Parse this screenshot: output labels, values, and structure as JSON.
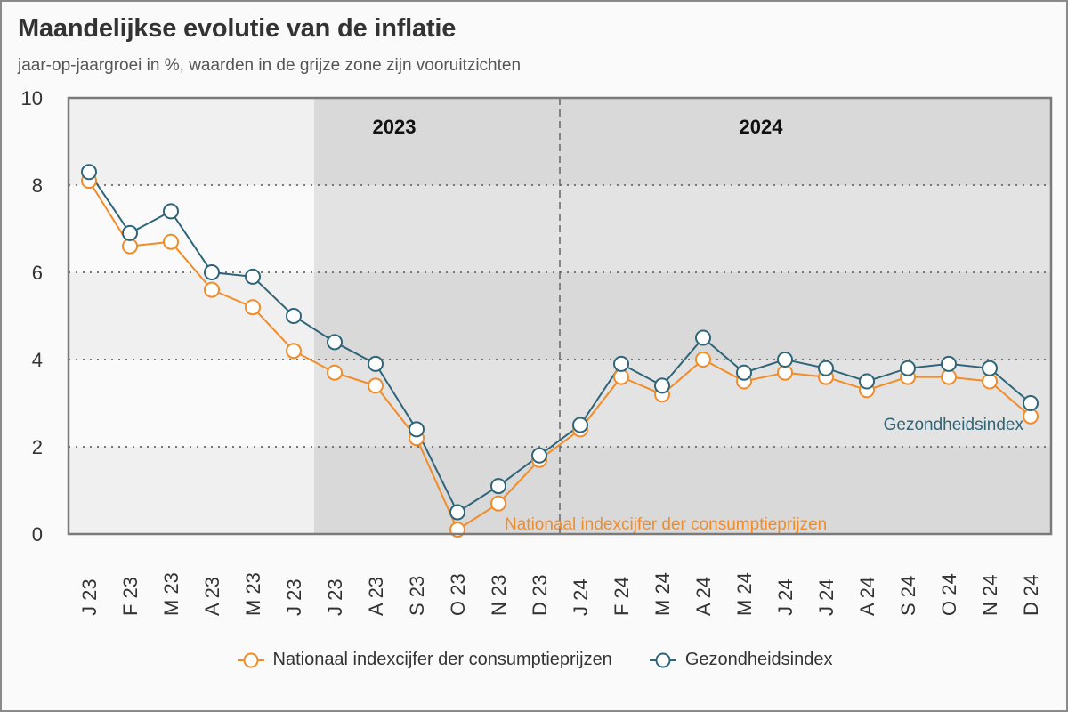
{
  "header": {
    "title": "Maandelijkse evolutie van de inflatie",
    "subtitle": "jaar-op-jaargroei in %, waarden in de grijze zone zijn vooruitzichten"
  },
  "chart_data": {
    "type": "line",
    "title": "Maandelijkse evolutie van de inflatie",
    "subtitle": "jaar-op-jaargroei in %, waarden in de grijze zone zijn vooruitzichten",
    "xlabel": "",
    "ylabel": "",
    "ylim": [
      0,
      10
    ],
    "yticks": [
      0,
      2,
      4,
      6,
      8,
      10
    ],
    "grid": "horizontal dotted",
    "categories": [
      "J 23",
      "F 23",
      "M 23",
      "A 23",
      "M 23",
      "J 23",
      "J 23",
      "A 23",
      "S 23",
      "O 23",
      "N 23",
      "D 23",
      "J 24",
      "F 24",
      "M 24",
      "A 24",
      "M 24",
      "J 24",
      "J 24",
      "A 24",
      "S 24",
      "O 24",
      "N 24",
      "D 24"
    ],
    "forecast_start_index": 6,
    "year_divider_index": 12,
    "year_labels": [
      {
        "label": "2023",
        "position": "centered-over-2023"
      },
      {
        "label": "2024",
        "position": "centered-over-2024"
      }
    ],
    "series": [
      {
        "name": "Nationaal indexcijfer der consumptieprijzen",
        "color": "#f28c28",
        "inline_label": "Nationaal indexcijfer der consumptieprijzen",
        "values": [
          8.1,
          6.6,
          6.7,
          5.6,
          5.2,
          4.2,
          3.7,
          3.4,
          2.2,
          0.1,
          0.7,
          1.7,
          2.4,
          3.6,
          3.2,
          4.0,
          3.5,
          3.7,
          3.6,
          3.3,
          3.6,
          3.6,
          3.5,
          2.7
        ]
      },
      {
        "name": "Gezondheidsindex",
        "color": "#2f6579",
        "inline_label": "Gezondheidsindex",
        "values": [
          8.3,
          6.9,
          7.4,
          6.0,
          5.9,
          5.0,
          4.4,
          3.9,
          2.4,
          0.5,
          1.1,
          1.8,
          2.5,
          3.9,
          3.4,
          4.5,
          3.7,
          4.0,
          3.8,
          3.5,
          3.8,
          3.9,
          3.8,
          3.0
        ]
      }
    ],
    "legend": "bottom-center"
  },
  "legend": {
    "items": [
      {
        "label": "Nationaal indexcijfer der consumptieprijzen",
        "color": "#f28c28"
      },
      {
        "label": "Gezondheidsindex",
        "color": "#2f6579"
      }
    ]
  }
}
